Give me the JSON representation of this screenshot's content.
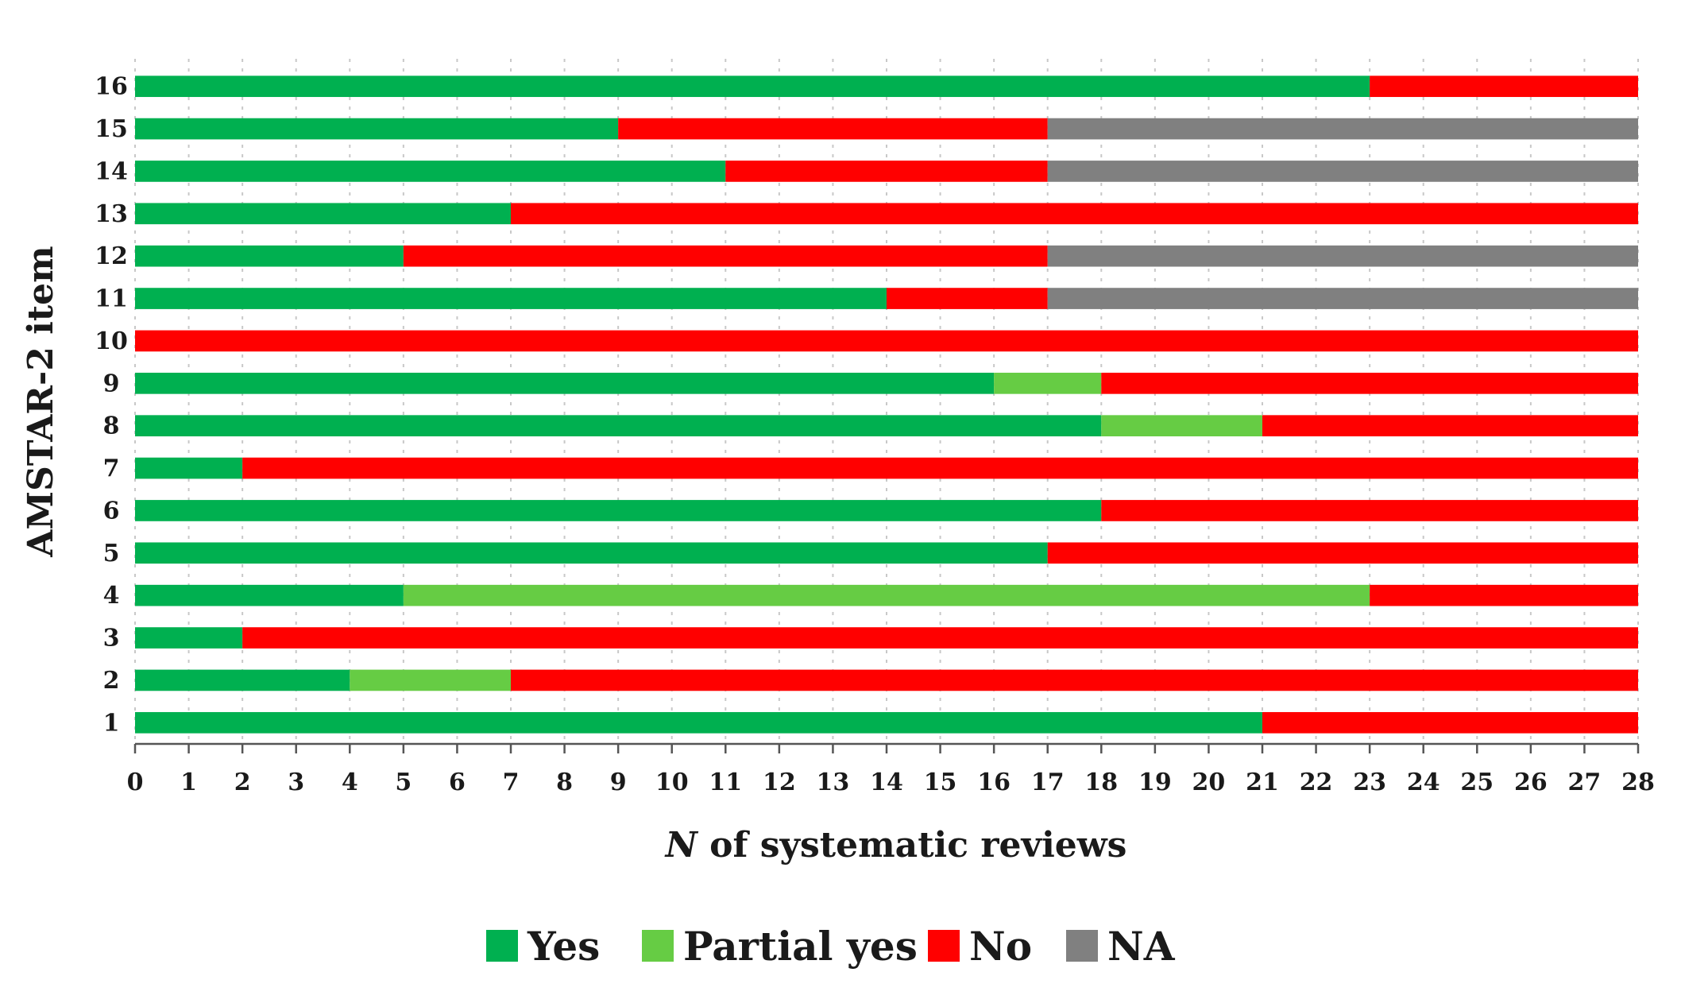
{
  "chart_data": {
    "type": "bar",
    "orientation": "horizontal",
    "stacked": true,
    "xlabel_italic": "N",
    "xlabel_rest": " of systematic reviews",
    "ylabel": "AMSTAR-2 item",
    "xlim": [
      0,
      28
    ],
    "xticks": [
      "0",
      "1",
      "2",
      "3",
      "4",
      "5",
      "6",
      "7",
      "8",
      "9",
      "10",
      "11",
      "12",
      "13",
      "14",
      "15",
      "16",
      "17",
      "18",
      "19",
      "20",
      "21",
      "22",
      "23",
      "24",
      "25",
      "26",
      "27",
      "28"
    ],
    "categories": [
      "1",
      "2",
      "3",
      "4",
      "5",
      "6",
      "7",
      "8",
      "9",
      "10",
      "11",
      "12",
      "13",
      "14",
      "15",
      "16"
    ],
    "series": [
      {
        "name": "Yes",
        "color": "#00b050",
        "values": [
          21,
          4,
          2,
          5,
          17,
          18,
          2,
          18,
          16,
          0,
          14,
          5,
          7,
          11,
          9,
          23
        ]
      },
      {
        "name": "Partial yes",
        "color": "#66cc44",
        "values": [
          0,
          3,
          0,
          18,
          0,
          0,
          0,
          3,
          2,
          0,
          0,
          0,
          0,
          0,
          0,
          0
        ]
      },
      {
        "name": "No",
        "color": "#ff0000",
        "values": [
          7,
          21,
          26,
          5,
          11,
          10,
          26,
          7,
          10,
          28,
          3,
          12,
          21,
          6,
          8,
          5
        ]
      },
      {
        "name": "NA",
        "color": "#808080",
        "values": [
          0,
          0,
          0,
          0,
          0,
          0,
          0,
          0,
          0,
          0,
          11,
          11,
          0,
          11,
          11,
          0
        ]
      }
    ],
    "grid": "vertical-dashed",
    "legend": "bottom"
  }
}
